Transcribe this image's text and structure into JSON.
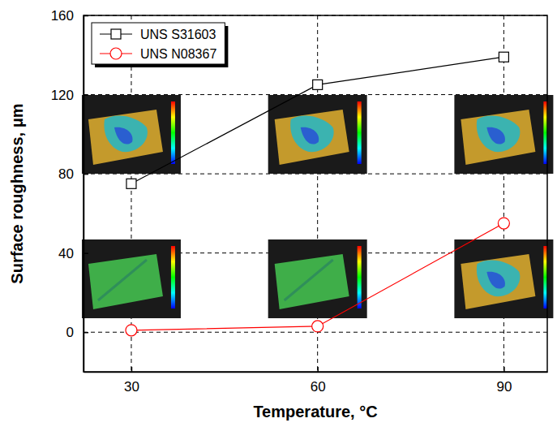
{
  "chart_data": {
    "type": "line",
    "x_label": "Temperature, °C",
    "y_label": "Surface roughness, μm",
    "x": [
      30,
      60,
      90
    ],
    "series": [
      {
        "name": "UNS S31603",
        "color": "#000000",
        "marker": "square",
        "values": [
          75,
          125,
          139
        ]
      },
      {
        "name": "UNS N08367",
        "color": "#ff0000",
        "marker": "circle",
        "values": [
          1,
          3,
          55
        ]
      }
    ],
    "xlim": [
      22.3,
      97
    ],
    "xticks": [
      30,
      60,
      90
    ],
    "ylim": [
      -20,
      160
    ],
    "yticks": [
      0,
      40,
      80,
      120,
      160
    ],
    "grid": true,
    "legend": "upper left"
  }
}
